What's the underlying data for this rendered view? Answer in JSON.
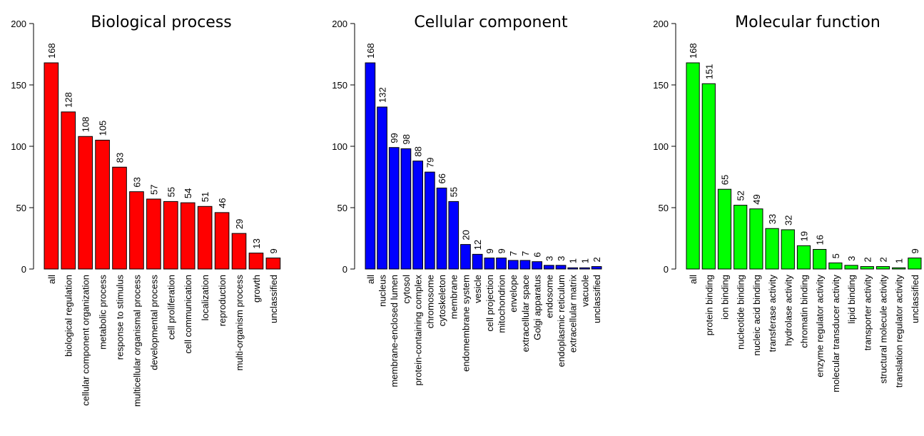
{
  "chart_data": [
    {
      "type": "bar",
      "title": "Biological process",
      "color": "#ff0000",
      "categories": [
        "all",
        "biological regulation",
        "cellular component organization",
        "metabolic process",
        "response to stimulus",
        "multicellular organismal process",
        "developmental process",
        "cell proliferation",
        "cell communication",
        "localization",
        "reproduction",
        "multi-organism process",
        "growth",
        "unclassified"
      ],
      "values": [
        168,
        128,
        108,
        105,
        83,
        63,
        57,
        55,
        54,
        51,
        46,
        29,
        13,
        9
      ],
      "ylim": [
        0,
        200
      ],
      "yticks": [
        0,
        50,
        100,
        150,
        200
      ]
    },
    {
      "type": "bar",
      "title": "Cellular component",
      "color": "#0000ff",
      "categories": [
        "all",
        "nucleus",
        "membrane-enclosed lumen",
        "cytosol",
        "protein-containing complex",
        "chromosome",
        "cytoskeleton",
        "membrane",
        "endomembrane system",
        "vesicle",
        "cell projection",
        "mitochondrion",
        "envelope",
        "extracellular space",
        "Golgi apparatus",
        "endosome",
        "endoplasmic reticulum",
        "extracellular matrix",
        "vacuole",
        "unclassified"
      ],
      "values": [
        168,
        132,
        99,
        98,
        88,
        79,
        66,
        55,
        20,
        12,
        9,
        9,
        7,
        7,
        6,
        3,
        3,
        1,
        1,
        2
      ],
      "ylim": [
        0,
        200
      ],
      "yticks": [
        0,
        50,
        100,
        150,
        200
      ]
    },
    {
      "type": "bar",
      "title": "Molecular function",
      "color": "#00ff00",
      "categories": [
        "all",
        "protein binding",
        "ion binding",
        "nucleotide binding",
        "nucleic acid binding",
        "transferase activity",
        "hydrolase activity",
        "chromatin binding",
        "enzyme regulator activity",
        "molecular transducer activity",
        "lipid binding",
        "transporter activity",
        "structural molecule activity",
        "translation regulator activity",
        "unclassified"
      ],
      "values": [
        168,
        151,
        65,
        52,
        49,
        33,
        32,
        19,
        16,
        5,
        3,
        2,
        2,
        1,
        9
      ],
      "ylim": [
        0,
        200
      ],
      "yticks": [
        0,
        50,
        100,
        150,
        200
      ]
    }
  ]
}
